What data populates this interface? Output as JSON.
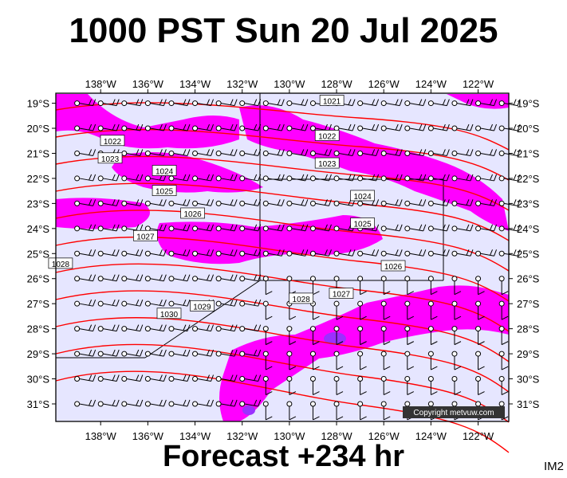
{
  "title": "1000 PST Sun 20 Jul 2025",
  "subtitle": "Forecast +234 hr",
  "image_tag": "IM2",
  "copyright": "Copyright metvuw.com",
  "colors": {
    "ocean": "#e6e6ff",
    "rain_light": "#ff00ff",
    "rain_heavy": "#9b30ff",
    "isobar": "#ff0000",
    "border": "#000000"
  },
  "map": {
    "lon_min": -139.9,
    "lon_max": -120.7,
    "lat_max": -18.6,
    "lat_min": -31.7,
    "lon_ticks": [
      {
        "lon": -138,
        "label": "138°W"
      },
      {
        "lon": -136,
        "label": "136°W"
      },
      {
        "lon": -134,
        "label": "134°W"
      },
      {
        "lon": -132,
        "label": "132°W"
      },
      {
        "lon": -130,
        "label": "130°W"
      },
      {
        "lon": -128,
        "label": "128°W"
      },
      {
        "lon": -126,
        "label": "126°W"
      },
      {
        "lon": -124,
        "label": "124°W"
      },
      {
        "lon": -122,
        "label": "122°W"
      }
    ],
    "lat_ticks": [
      {
        "lat": -19,
        "label": "19°S"
      },
      {
        "lat": -20,
        "label": "20°S"
      },
      {
        "lat": -21,
        "label": "21°S"
      },
      {
        "lat": -22,
        "label": "22°S"
      },
      {
        "lat": -23,
        "label": "23°S"
      },
      {
        "lat": -24,
        "label": "24°S"
      },
      {
        "lat": -25,
        "label": "25°S"
      },
      {
        "lat": -26,
        "label": "26°S"
      },
      {
        "lat": -27,
        "label": "27°S"
      },
      {
        "lat": -28,
        "label": "28°S"
      },
      {
        "lat": -29,
        "label": "29°S"
      },
      {
        "lat": -30,
        "label": "30°S"
      },
      {
        "lat": -31,
        "label": "31°S"
      }
    ],
    "isobar_labels": [
      {
        "text": "1021",
        "lon": -128.2,
        "lat": -18.9
      },
      {
        "text": "1022",
        "lon": -137.5,
        "lat": -20.5
      },
      {
        "text": "1022",
        "lon": -128.4,
        "lat": -20.3
      },
      {
        "text": "1023",
        "lon": -137.6,
        "lat": -21.2
      },
      {
        "text": "1023",
        "lon": -128.4,
        "lat": -21.4
      },
      {
        "text": "1024",
        "lon": -135.3,
        "lat": -21.7
      },
      {
        "text": "1024",
        "lon": -126.9,
        "lat": -22.7
      },
      {
        "text": "1025",
        "lon": -135.3,
        "lat": -22.5
      },
      {
        "text": "1025",
        "lon": -126.9,
        "lat": -23.8
      },
      {
        "text": "1026",
        "lon": -134.1,
        "lat": -23.4
      },
      {
        "text": "1026",
        "lon": -125.6,
        "lat": -25.5
      },
      {
        "text": "1027",
        "lon": -136.1,
        "lat": -24.3
      },
      {
        "text": "1027",
        "lon": -127.8,
        "lat": -26.6
      },
      {
        "text": "1028",
        "lon": -139.7,
        "lat": -25.4
      },
      {
        "text": "1028",
        "lon": -129.5,
        "lat": -26.8
      },
      {
        "text": "1029",
        "lon": -133.7,
        "lat": -27.1
      },
      {
        "text": "1030",
        "lon": -135.1,
        "lat": -27.4
      }
    ]
  }
}
